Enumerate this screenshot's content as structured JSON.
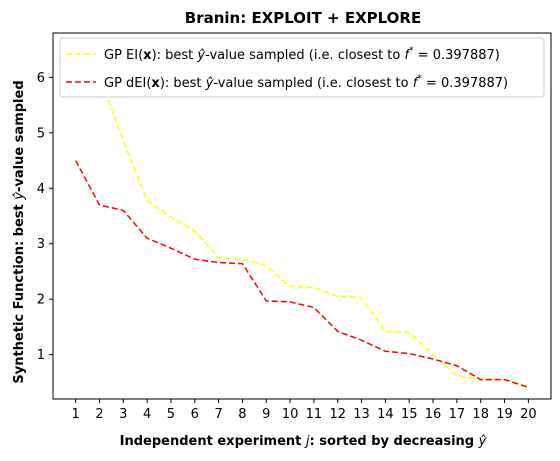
{
  "chart_data": {
    "type": "line",
    "title": "Branin: EXPLOIT + EXPLORE",
    "xlabel": "Independent experiment j: sorted by decreasing ŷ",
    "ylabel": "Synthetic Function: best ŷ-value sampled",
    "x": [
      1,
      2,
      3,
      4,
      5,
      6,
      7,
      8,
      9,
      10,
      11,
      12,
      13,
      14,
      15,
      16,
      17,
      18,
      19,
      20
    ],
    "xticks": [
      "1",
      "2",
      "3",
      "4",
      "5",
      "6",
      "7",
      "8",
      "9",
      "10",
      "11",
      "12",
      "13",
      "14",
      "15",
      "16",
      "17",
      "18",
      "19",
      "20"
    ],
    "yticks": [
      "1",
      "2",
      "3",
      "4",
      "5",
      "6"
    ],
    "xlim": [
      0.05,
      20.95
    ],
    "ylim": [
      0.2,
      6.8
    ],
    "grid": false,
    "legend_position": "top",
    "series": [
      {
        "name": "GP EI(x):   best ŷ-value sampled (i.e. closest to f* = 0.397887)",
        "color": "#ffff00",
        "style": "dashed",
        "values": [
          6.55,
          6.05,
          4.85,
          3.78,
          3.48,
          3.23,
          2.75,
          2.72,
          2.6,
          2.23,
          2.21,
          2.05,
          2.03,
          1.42,
          1.4,
          1.0,
          0.62,
          0.56,
          0.55,
          0.42
        ]
      },
      {
        "name": "GP dEI(x): best ŷ-value sampled (i.e. closest to f* = 0.397887)",
        "color": "#ff0000",
        "style": "dashed",
        "values": [
          4.5,
          3.7,
          3.6,
          3.1,
          2.92,
          2.72,
          2.66,
          2.64,
          1.97,
          1.95,
          1.85,
          1.42,
          1.26,
          1.06,
          1.02,
          0.92,
          0.8,
          0.55,
          0.55,
          0.41
        ]
      }
    ]
  }
}
